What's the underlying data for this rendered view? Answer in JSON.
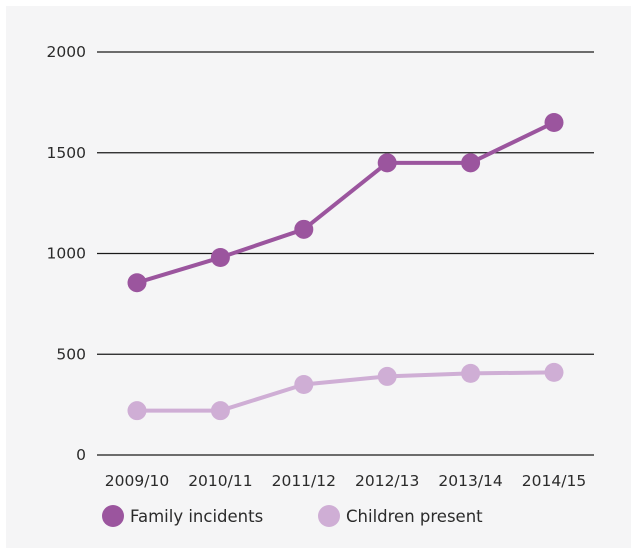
{
  "chart_data": {
    "type": "line",
    "categories": [
      "2009/10",
      "2010/11",
      "2011/12",
      "2012/13",
      "2013/14",
      "2014/15"
    ],
    "series": [
      {
        "name": "Family incidents",
        "values": [
          855,
          980,
          1120,
          1450,
          1450,
          1650
        ],
        "color": "#9b559e"
      },
      {
        "name": "Children present",
        "values": [
          220,
          220,
          350,
          390,
          405,
          410
        ],
        "color": "#cfaed5"
      }
    ],
    "yticks": [
      0,
      500,
      1000,
      1500,
      2000
    ],
    "ylim": [
      0,
      2000
    ],
    "grid": true,
    "legend_position": "bottom-left",
    "title": "",
    "xlabel": "",
    "ylabel": ""
  },
  "legend": {
    "items": [
      {
        "label": "Family incidents",
        "color": "#9b559e"
      },
      {
        "label": "Children present",
        "color": "#cfaed5"
      }
    ]
  }
}
